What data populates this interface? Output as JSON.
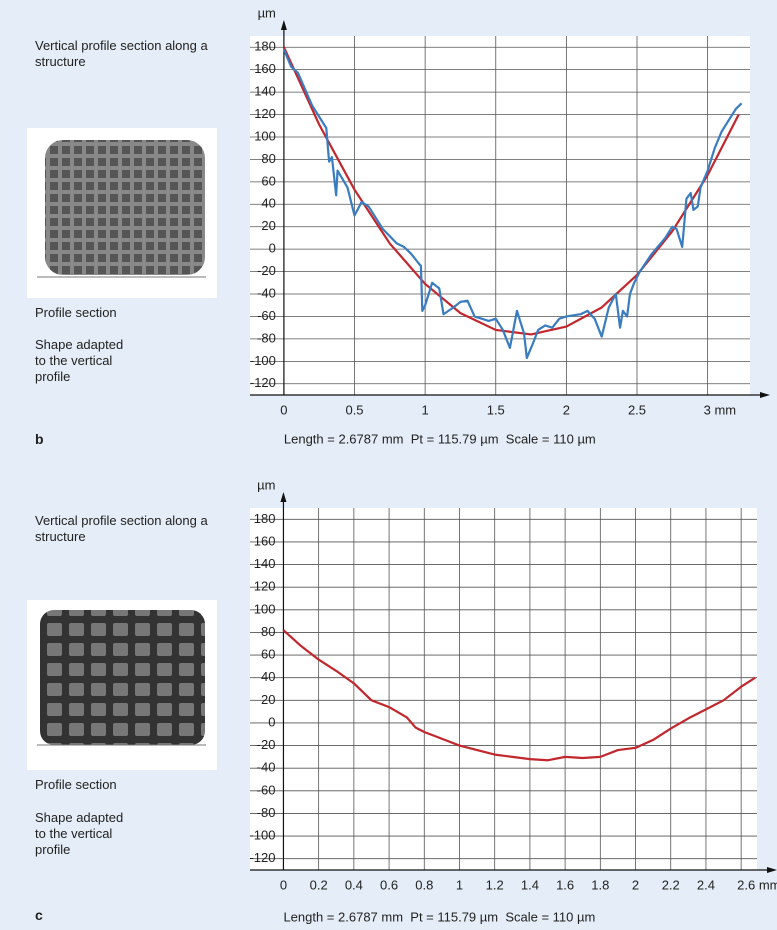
{
  "chart_data": [
    {
      "type": "line",
      "panel_label": "b",
      "y_label": "µm",
      "side_note": "Vertical profile section along a structure",
      "image_caption": "Profile section",
      "shape_note": "Shape adapted to the vertical profile",
      "caption": "Length = 2.6787 mm  Pt = 115.79 µm  Scale = 110 µm",
      "xlim": [
        -0.24,
        3.3
      ],
      "ylim": [
        -130,
        190
      ],
      "xticks": [
        0,
        0.5,
        1,
        1.5,
        2,
        2.5,
        {
          "value": 3,
          "label": "3 mm"
        }
      ],
      "yticks": [
        -120,
        -100,
        -80,
        -60,
        -40,
        -20,
        0,
        20,
        40,
        60,
        80,
        100,
        120,
        140,
        160,
        180
      ],
      "grid": true,
      "series": [
        {
          "color": "#c1272d",
          "x": [
            0,
            0.25,
            0.5,
            0.75,
            1.0,
            1.25,
            1.5,
            1.75,
            2.0,
            2.25,
            2.5,
            2.75,
            3.0,
            3.22
          ],
          "values": [
            180,
            111,
            53,
            5,
            -31,
            -57,
            -72,
            -76,
            -69,
            -52,
            -23,
            16,
            66,
            120
          ]
        },
        {
          "color": "#3a7cc0",
          "x": [
            0,
            0.05,
            0.1,
            0.2,
            0.3,
            0.32,
            0.34,
            0.37,
            0.38,
            0.45,
            0.5,
            0.55,
            0.6,
            0.7,
            0.8,
            0.85,
            0.9,
            0.95,
            0.97,
            0.98,
            1.0,
            1.05,
            1.1,
            1.13,
            1.2,
            1.25,
            1.3,
            1.35,
            1.45,
            1.5,
            1.55,
            1.6,
            1.62,
            1.65,
            1.7,
            1.72,
            1.76,
            1.8,
            1.85,
            1.9,
            1.95,
            2.0,
            2.1,
            2.15,
            2.2,
            2.25,
            2.3,
            2.35,
            2.38,
            2.4,
            2.43,
            2.45,
            2.48,
            2.52,
            2.6,
            2.7,
            2.75,
            2.78,
            2.82,
            2.85,
            2.88,
            2.9,
            2.93,
            2.95,
            3.0,
            3.05,
            3.1,
            3.15,
            3.2,
            3.24
          ],
          "values": [
            178,
            163,
            157,
            128,
            108,
            78,
            82,
            48,
            70,
            55,
            30,
            42,
            38,
            18,
            5,
            2,
            -4,
            -12,
            -15,
            -55,
            -50,
            -30,
            -35,
            -58,
            -52,
            -47,
            -46,
            -60,
            -64,
            -62,
            -72,
            -88,
            -75,
            -55,
            -75,
            -97,
            -85,
            -72,
            -68,
            -70,
            -62,
            -60,
            -58,
            -55,
            -62,
            -78,
            -52,
            -40,
            -70,
            -55,
            -60,
            -40,
            -30,
            -20,
            -5,
            10,
            20,
            18,
            2,
            45,
            50,
            35,
            38,
            55,
            70,
            90,
            105,
            115,
            125,
            130
          ]
        }
      ]
    },
    {
      "type": "line",
      "panel_label": "c",
      "y_label": "µm",
      "side_note": "Vertical profile section along a structure",
      "image_caption": "Profile section",
      "shape_note": "Shape adapted to the vertical profile",
      "caption": "Length = 2.6787 mm  Pt = 115.79 µm  Scale = 110 µm",
      "xlim": [
        -0.19,
        2.69
      ],
      "ylim": [
        -130,
        190
      ],
      "xticks": [
        0,
        0.2,
        0.4,
        0.6,
        0.8,
        1,
        1.2,
        1.4,
        1.6,
        1.8,
        2,
        2.2,
        2.4,
        {
          "value": 2.6,
          "label": "2.6 mm"
        }
      ],
      "yticks": [
        -120,
        -100,
        -80,
        -60,
        -40,
        -20,
        0,
        20,
        40,
        60,
        80,
        100,
        120,
        140,
        160,
        180
      ],
      "grid": true,
      "series": [
        {
          "color": "#c1272d",
          "x": [
            0,
            0.1,
            0.2,
            0.3,
            0.4,
            0.5,
            0.6,
            0.7,
            0.75,
            0.8,
            0.9,
            1.0,
            1.1,
            1.2,
            1.3,
            1.4,
            1.5,
            1.6,
            1.7,
            1.8,
            1.9,
            2.0,
            2.1,
            2.2,
            2.3,
            2.4,
            2.5,
            2.6,
            2.68
          ],
          "values": [
            82,
            68,
            56,
            46,
            35,
            20,
            14,
            5,
            -4,
            -8,
            -14,
            -20,
            -24,
            -28,
            -30,
            -32,
            -33,
            -30,
            -31,
            -30,
            -24,
            -22,
            -15,
            -5,
            4,
            12,
            20,
            32,
            40
          ]
        }
      ]
    }
  ]
}
